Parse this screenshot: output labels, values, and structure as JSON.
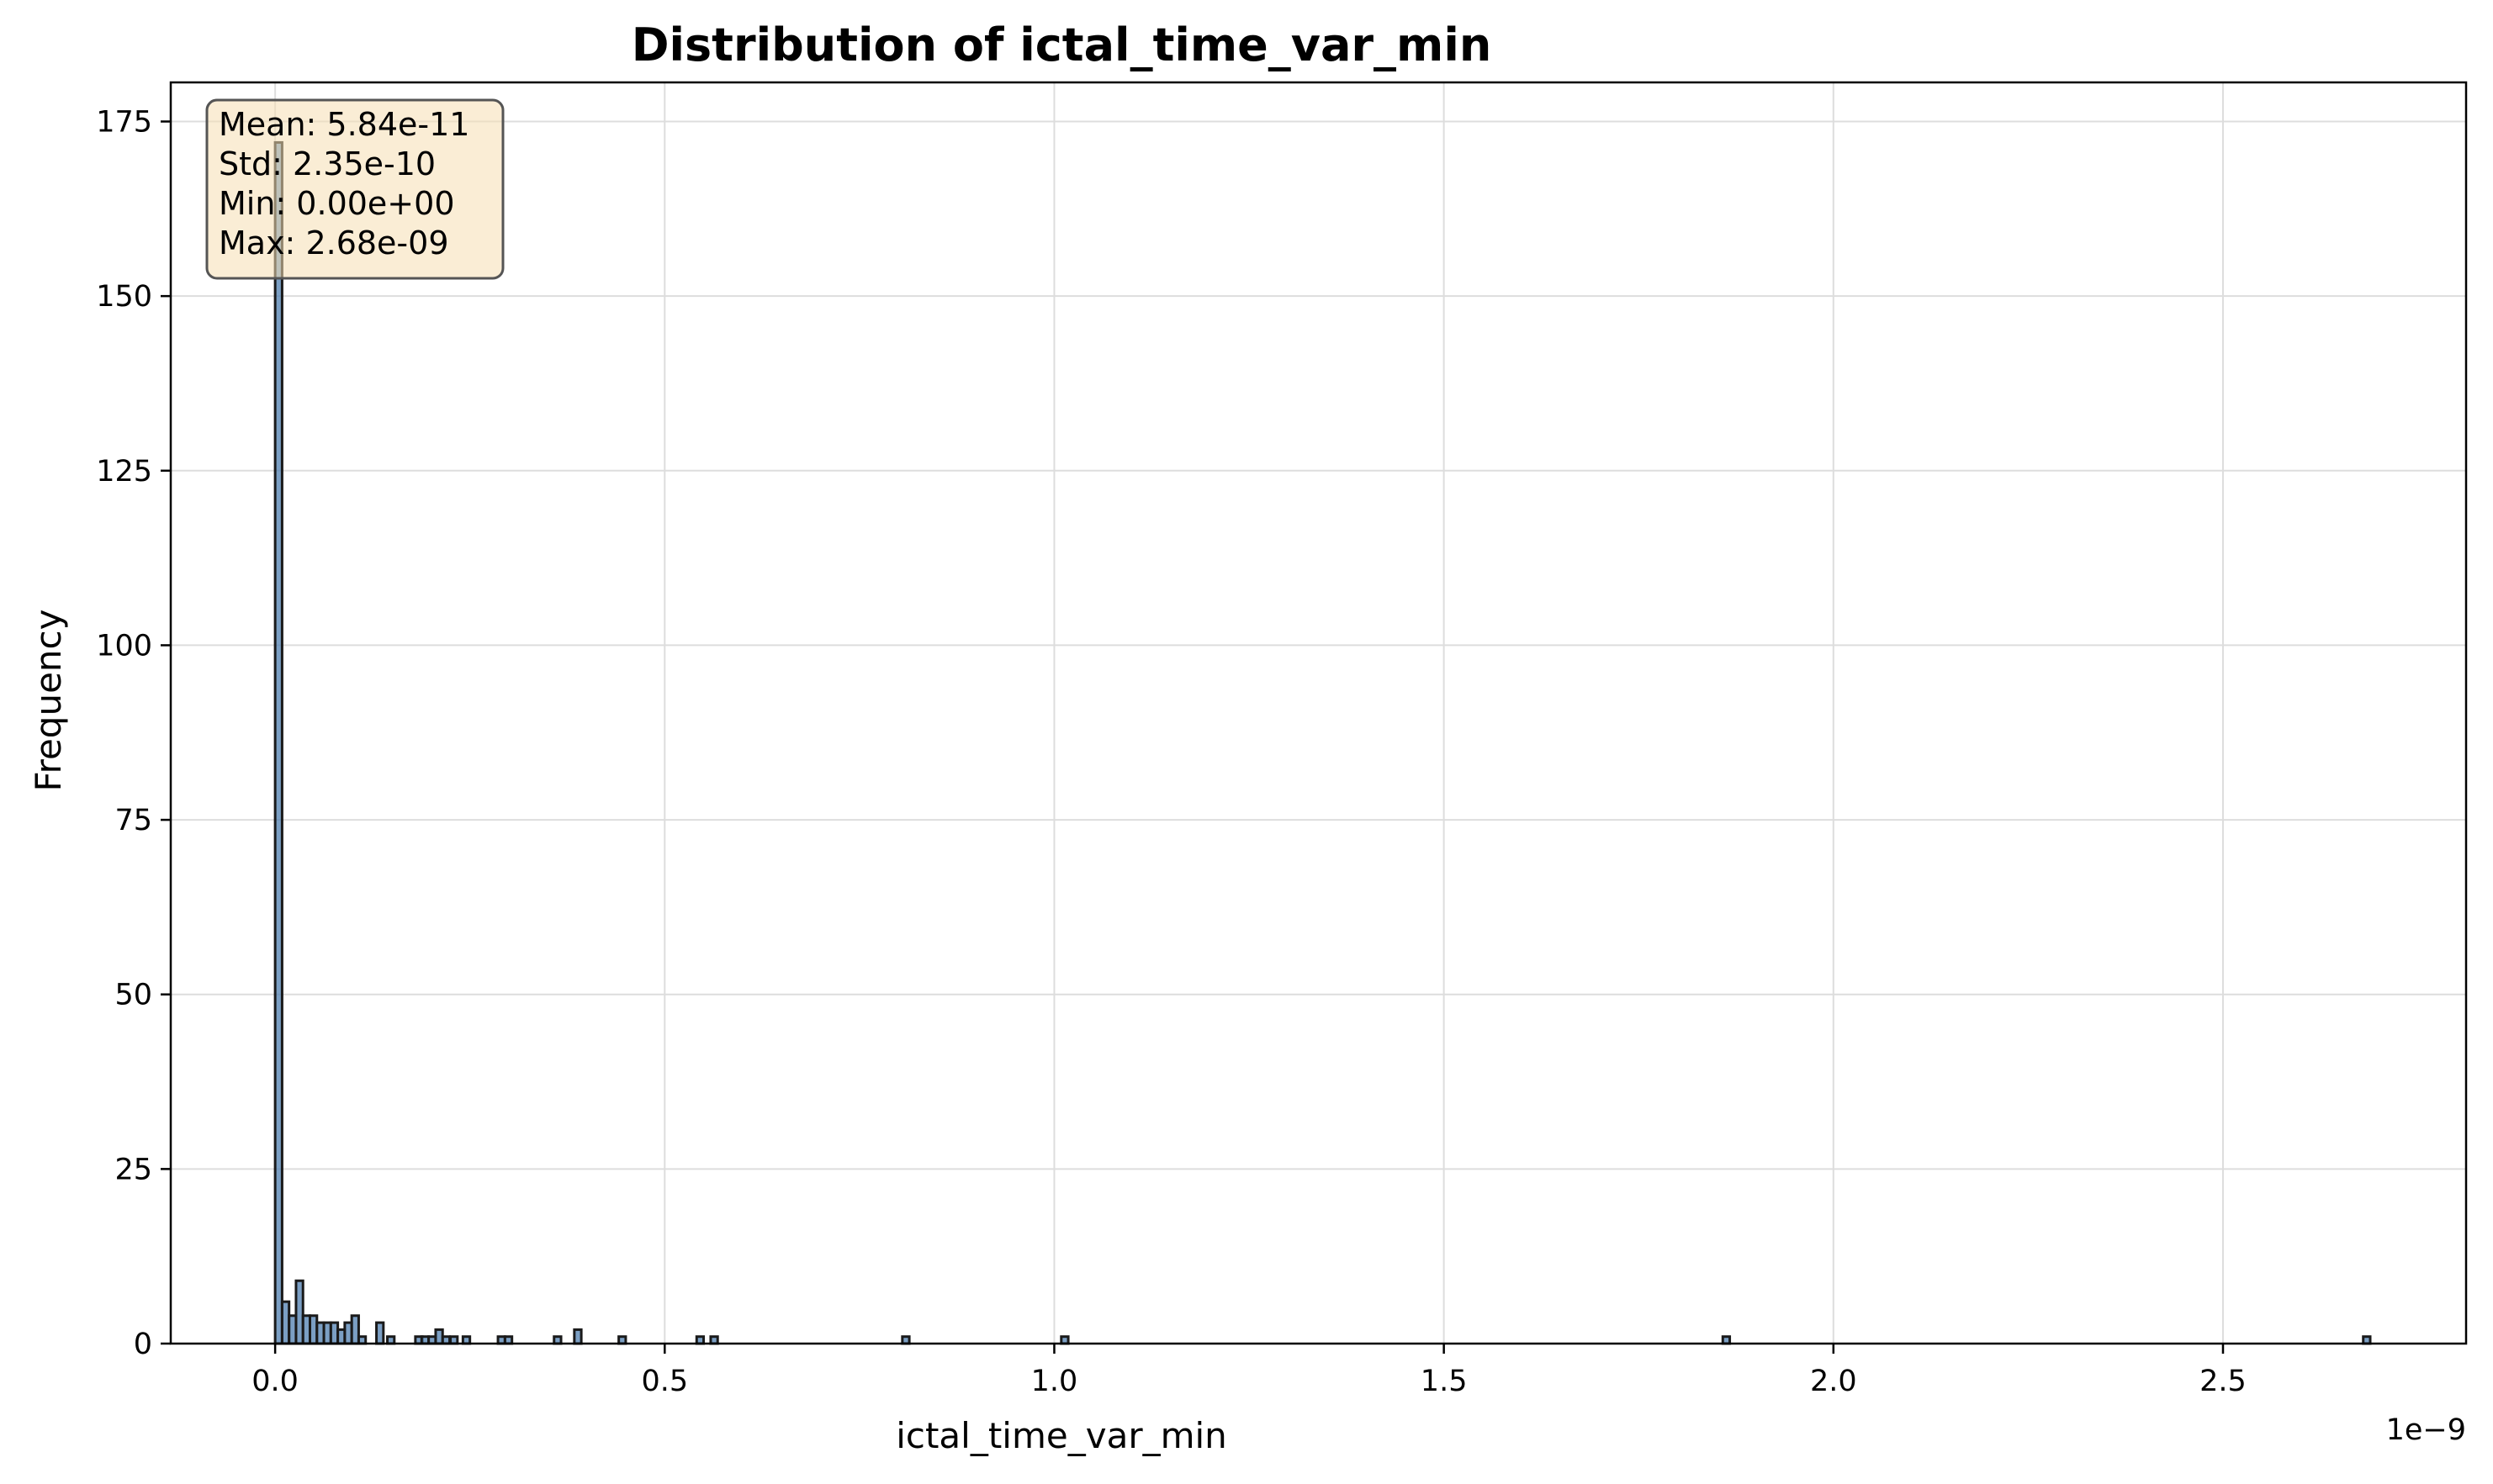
{
  "chart_data": {
    "type": "bar",
    "title": "Distribution of ictal_time_var_min",
    "xlabel": "ictal_time_var_min",
    "ylabel": "Frequency",
    "x_offset_label": "1e−9",
    "xlim": [
      -0.134,
      2.812
    ],
    "ylim": [
      0,
      180.6
    ],
    "x_ticks": [
      0.0,
      0.5,
      1.0,
      1.5,
      2.0,
      2.5
    ],
    "x_tick_labels": [
      "0.0",
      "0.5",
      "1.0",
      "1.5",
      "2.0",
      "2.5"
    ],
    "y_ticks": [
      0,
      25,
      50,
      75,
      100,
      125,
      150,
      175
    ],
    "y_tick_labels": [
      "0",
      "25",
      "50",
      "75",
      "100",
      "125",
      "150",
      "175"
    ],
    "grid": true,
    "bar_color": "#4f7fb0",
    "edge_color": "#1a1a1a",
    "bin_width": 0.00893,
    "bin_starts": [
      0.0,
      0.00893,
      0.01787,
      0.0268,
      0.03573,
      0.04467,
      0.0536,
      0.06253,
      0.07147,
      0.0804,
      0.08933,
      0.09827,
      0.1072,
      0.13,
      0.144,
      0.18,
      0.188,
      0.197,
      0.206,
      0.215,
      0.225,
      0.241,
      0.286,
      0.295,
      0.358,
      0.384,
      0.441,
      0.541,
      0.559,
      0.805,
      1.009,
      1.858,
      2.68
    ],
    "values": [
      172,
      6,
      4,
      9,
      4,
      4,
      3,
      3,
      3,
      2,
      3,
      4,
      1,
      3,
      1,
      1,
      1,
      1,
      2,
      1,
      1,
      1,
      1,
      1,
      1,
      2,
      1,
      1,
      1,
      1,
      1,
      1,
      1
    ],
    "stats_box": {
      "lines": [
        "Mean: 5.84e-11",
        "Std: 2.35e-10",
        "Min: 0.00e+00",
        "Max: 2.68e-09"
      ],
      "fill": "#f5deb3",
      "placement": "top-left"
    }
  }
}
